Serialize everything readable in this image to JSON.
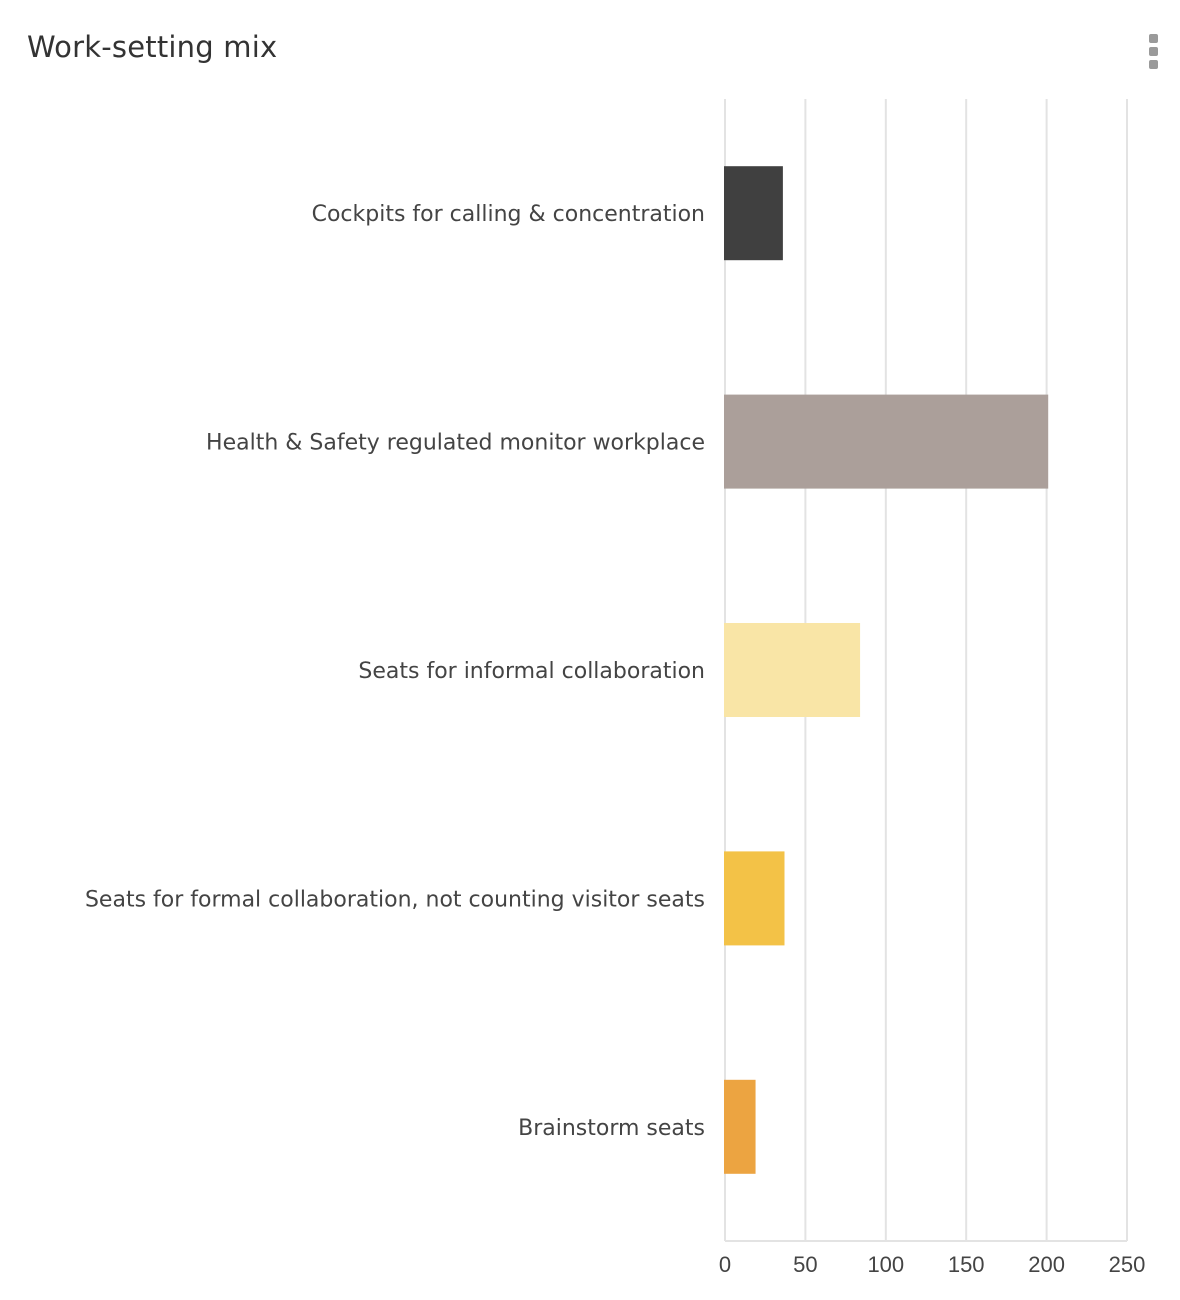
{
  "header": {
    "title": "Work-setting mix",
    "menu_icon": "more-vertical-icon"
  },
  "chart_data": {
    "type": "bar",
    "orientation": "horizontal",
    "title": "Work-setting mix",
    "categories": [
      "Cockpits for calling & concentration",
      "Health & Safety regulated monitor workplace",
      "Seats for informal collaboration",
      "Seats for formal collaboration, not counting visitor seats",
      "Brainstorm seats"
    ],
    "values": [
      36,
      201,
      84,
      37,
      19
    ],
    "colors": [
      "#404040",
      "#ab9f9a",
      "#f9e5a6",
      "#f3c247",
      "#eca441"
    ],
    "xlabel": "",
    "ylabel": "",
    "xlim": [
      0,
      250
    ],
    "xticks": [
      "0",
      "50",
      "100",
      "150",
      "200",
      "250"
    ],
    "grid": true,
    "legend": "none"
  }
}
